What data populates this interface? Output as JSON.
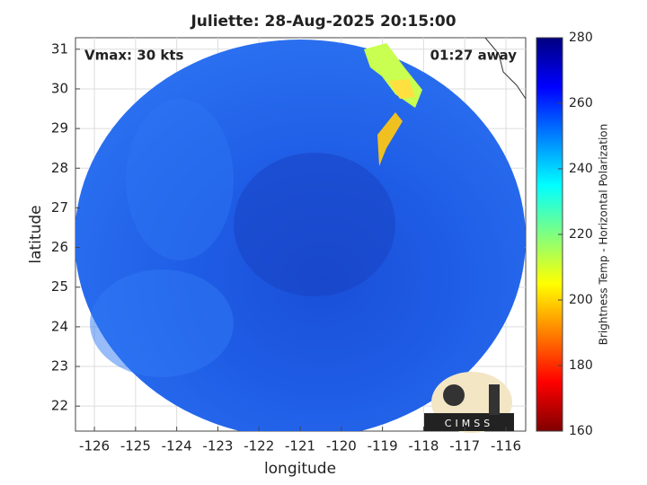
{
  "chart_data": {
    "type": "map",
    "title": "Juliette: 28-Aug-2025 20:15:00",
    "annotations": [
      "Vmax: 30 kts",
      "01:27 away"
    ],
    "x_label": "longitude",
    "y_label": "latitude",
    "xlim": [
      -126.46,
      -115.52
    ],
    "xticks": [
      -126,
      -125,
      -124,
      -123,
      -122,
      -121,
      -120,
      -119,
      -118,
      -117,
      -116
    ],
    "ylim": [
      21.37,
      31.29
    ],
    "yticks": [
      22,
      23,
      24,
      25,
      26,
      27,
      28,
      29,
      30,
      31
    ],
    "grid": true,
    "colorbar": {
      "label": "Brightness Temp - Horizontal Polarization",
      "clim": [
        160,
        280
      ],
      "cticks": [
        160,
        180,
        200,
        220,
        240,
        260,
        280
      ],
      "colormap": [
        "#800000",
        "#ff0000",
        "#ff8000",
        "#ffff00",
        "#80ff80",
        "#00ffff",
        "#0080ff",
        "#0000ff",
        "#000080"
      ]
    },
    "logo": "CIMSS"
  }
}
